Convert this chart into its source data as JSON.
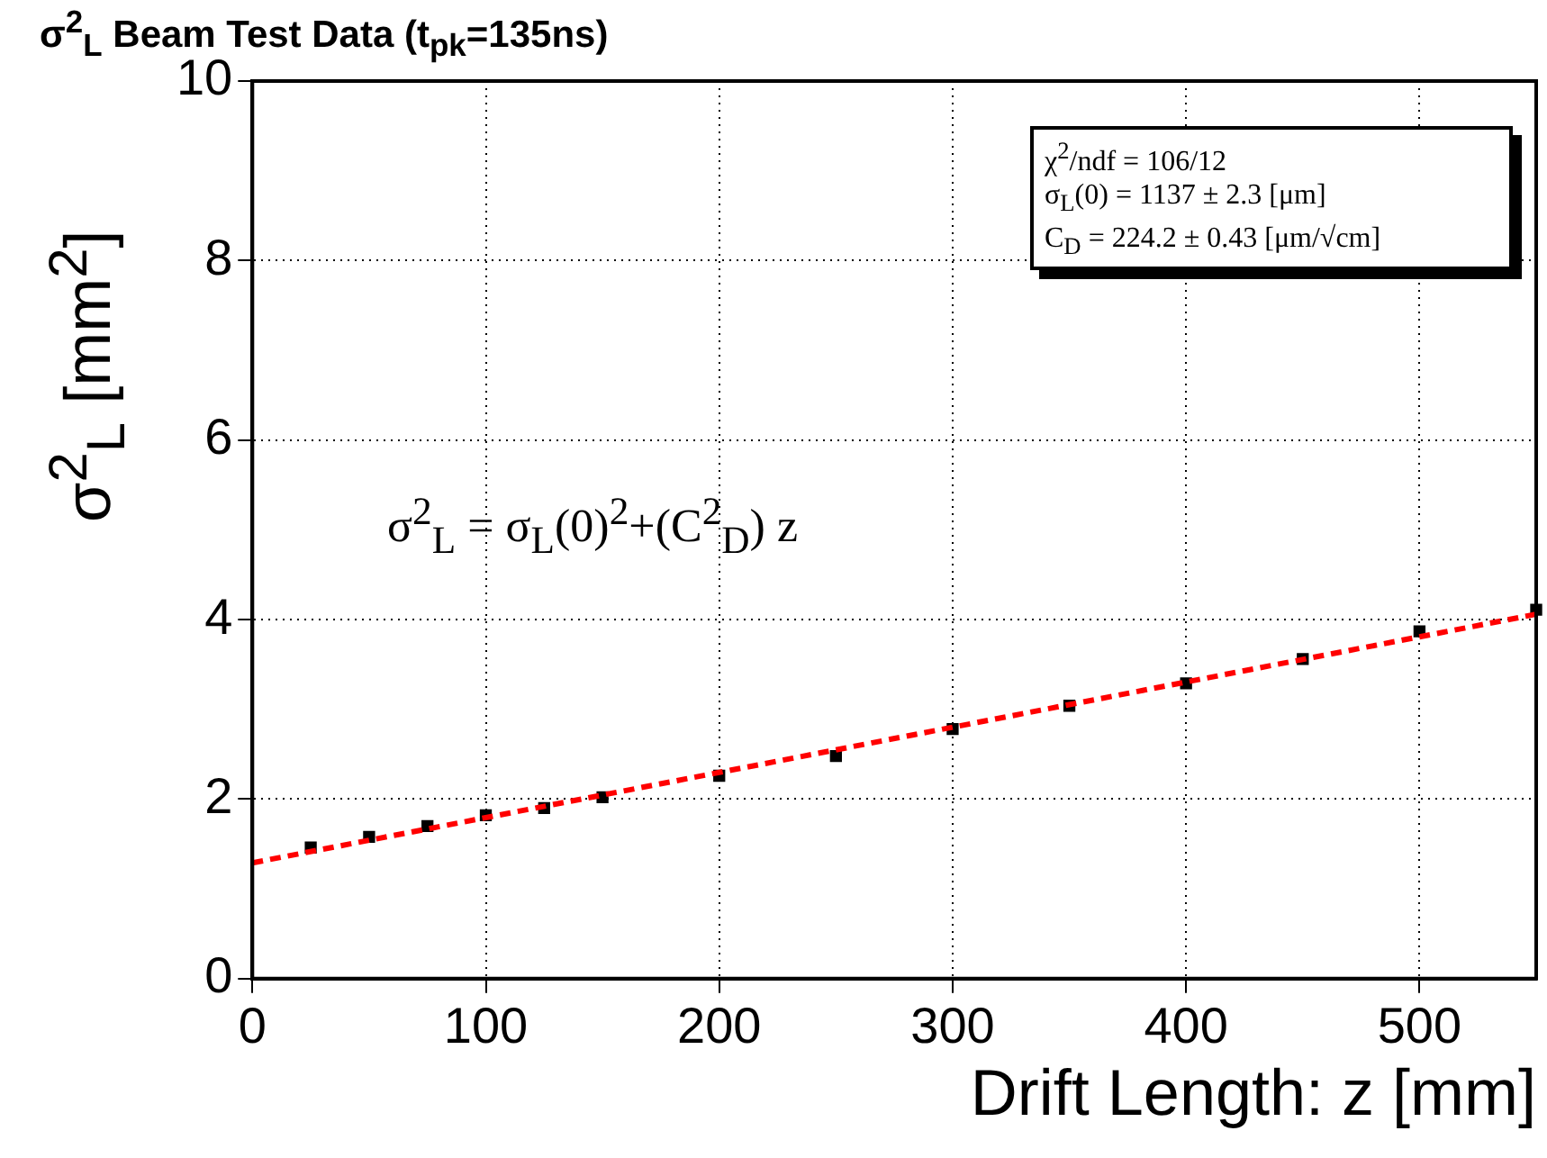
{
  "chart_data": {
    "type": "scatter",
    "title": "σ$^{2}$$_{L}$ Beam Test Data (t$_{pk}$=135ns)",
    "xlabel": "Drift Length: z [mm]",
    "ylabel": "σ$^{2}$$_{L}$ [mm$^{2}$]",
    "annotations": [
      "χ$^{2}$/ndf = 106/12",
      "σ$_{L}$(0) =   1137 ± 2.3 [μm]",
      "C$_{D}$ =  224.2 ± 0.43 [μm/√cm]",
      "σ$^{2}$$_{L}$ = σ$_{L}$(0)$^{2}$+(C$^{2}$$_{D}$) z"
    ],
    "xlim": [
      0,
      550
    ],
    "xticks": [
      0,
      100,
      200,
      300,
      400,
      500
    ],
    "ylim": [
      0,
      10
    ],
    "yticks": [
      0,
      2,
      4,
      6,
      8,
      10
    ],
    "grid": true,
    "legend": false,
    "series": [
      {
        "color": "#000000",
        "marker": "square",
        "x": [
          25,
          50,
          75,
          100,
          125,
          150,
          200,
          250,
          300,
          350,
          400,
          450,
          500,
          550
        ],
        "values": [
          1.46,
          1.58,
          1.7,
          1.82,
          1.9,
          2.02,
          2.26,
          2.48,
          2.78,
          3.04,
          3.29,
          3.56,
          3.87,
          4.11
        ]
      },
      {
        "type": "line",
        "color": "#ff0000",
        "marker": "none",
        "line_style": "dashed",
        "x": [
          0,
          550
        ],
        "values": [
          1.29,
          4.06
        ]
      }
    ]
  }
}
